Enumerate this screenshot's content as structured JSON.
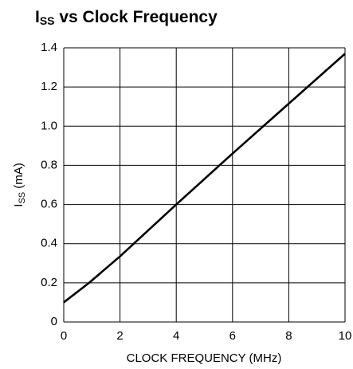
{
  "chart_data": {
    "type": "line",
    "title": [
      "I",
      "SS",
      " vs Clock Frequency"
    ],
    "xlabel": "CLOCK FREQUENCY (MHz)",
    "ylabel": [
      "I",
      "SS",
      " (mA)"
    ],
    "x": [
      0,
      0.9,
      2,
      4,
      6,
      8,
      10
    ],
    "series": [
      {
        "color": "#000000",
        "values": [
          0.1,
          0.2,
          0.335,
          0.6,
          0.86,
          1.115,
          1.37
        ]
      }
    ],
    "xlim": [
      0,
      10
    ],
    "xticks": [
      0,
      2,
      4,
      6,
      8,
      10
    ],
    "ylim": [
      0,
      1.4
    ],
    "yticks": [
      0,
      0.2,
      0.4,
      0.6,
      0.8,
      {
        "value": 1,
        "label": "1.0"
      },
      1.2,
      1.4
    ],
    "grid": true
  }
}
